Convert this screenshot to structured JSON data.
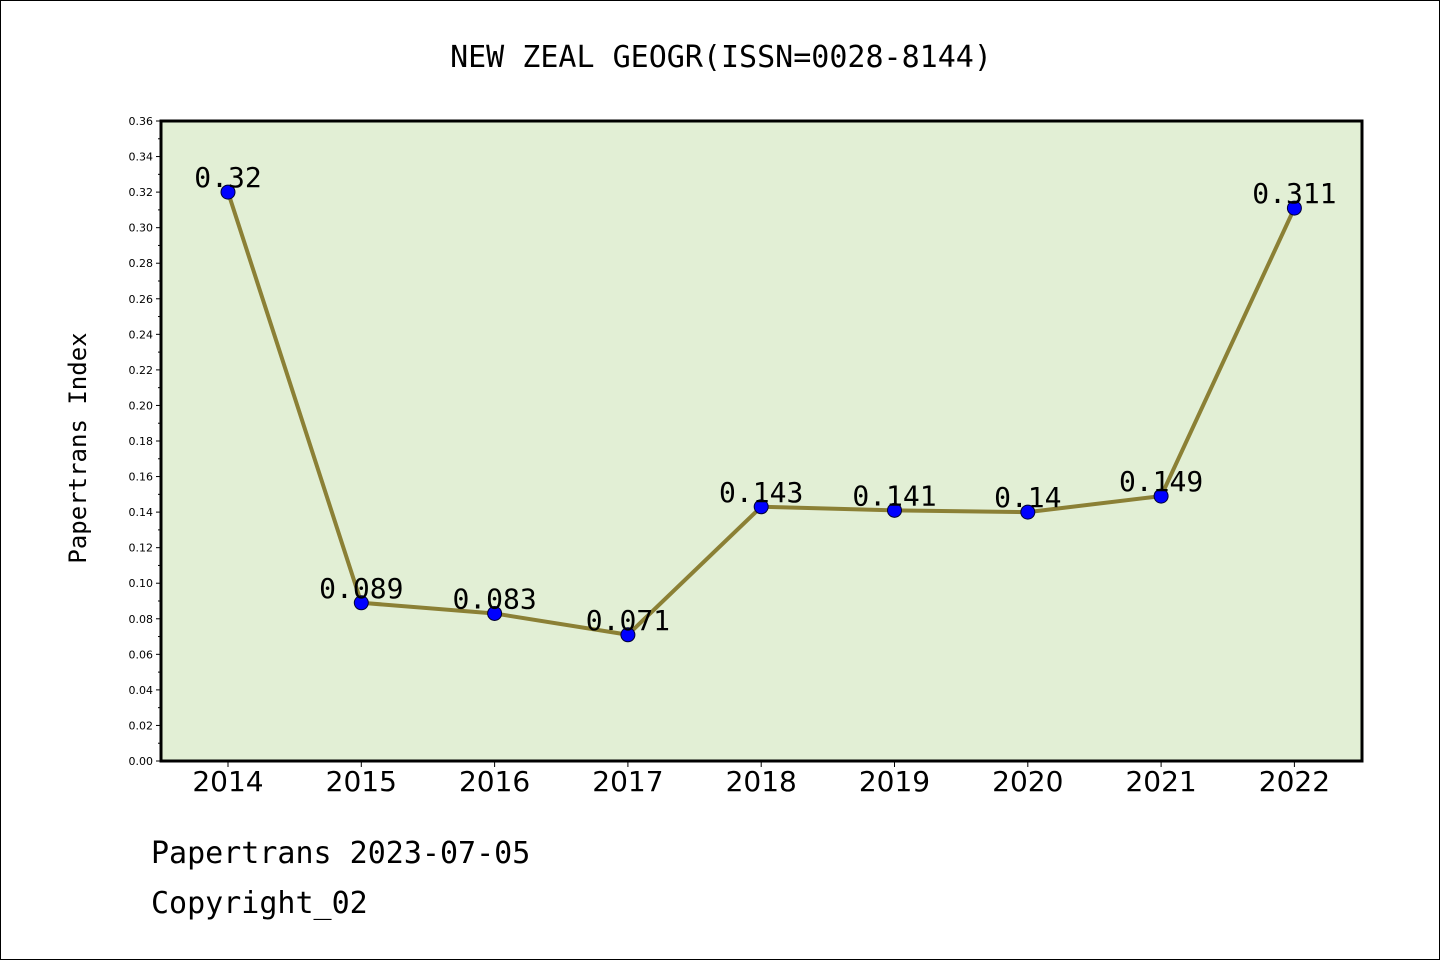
{
  "chart_data": {
    "type": "line",
    "title": "NEW ZEAL GEOGR(ISSN=0028-8144)",
    "xlabel": "",
    "ylabel": "Papertrans Index",
    "categories": [
      "2014",
      "2015",
      "2016",
      "2017",
      "2018",
      "2019",
      "2020",
      "2021",
      "2022"
    ],
    "values": [
      0.32,
      0.089,
      0.083,
      0.071,
      0.143,
      0.141,
      0.14,
      0.149,
      0.311
    ],
    "data_labels": [
      "0.32",
      "0.089",
      "0.083",
      "0.071",
      "0.143",
      "0.141",
      "0.14",
      "0.149",
      "0.311"
    ],
    "ylim": [
      0,
      0.36
    ],
    "yticks": [
      "0.00",
      "0.02",
      "0.04",
      "0.06",
      "0.08",
      "0.10",
      "0.12",
      "0.14",
      "0.16",
      "0.18",
      "0.20",
      "0.22",
      "0.24",
      "0.26",
      "0.28",
      "0.30",
      "0.32",
      "0.34",
      "0.36"
    ],
    "grid": false,
    "legend": "none",
    "colors": {
      "plot_background": "#e2efd5",
      "line": "#8b8035",
      "marker": "#0000ff"
    }
  },
  "footer": {
    "line1": "Papertrans 2023-07-05",
    "line2": "Copyright_02"
  }
}
